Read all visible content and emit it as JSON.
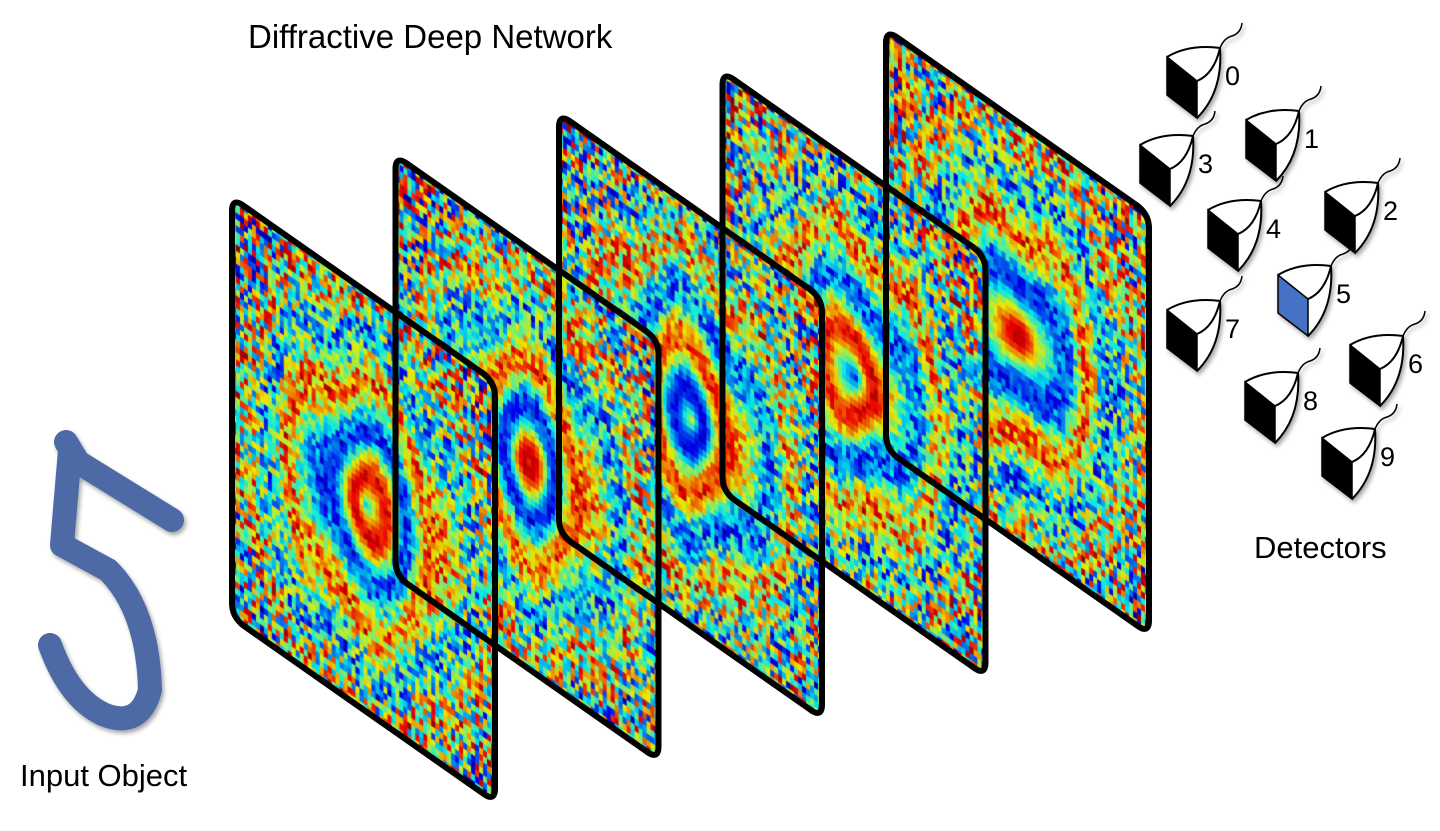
{
  "title": "Diffractive Deep Network",
  "input_label": "Input Object",
  "detectors_label": "Detectors",
  "input_digit": "5",
  "layer_count": 5,
  "colormap": "jet",
  "colors": {
    "digit": "#4d6aa6",
    "active_detector": "#4472c4",
    "frame": "#000000"
  },
  "detectors": [
    {
      "label": "0",
      "active": false
    },
    {
      "label": "1",
      "active": false
    },
    {
      "label": "2",
      "active": false
    },
    {
      "label": "3",
      "active": false
    },
    {
      "label": "4",
      "active": false
    },
    {
      "label": "5",
      "active": true
    },
    {
      "label": "6",
      "active": false
    },
    {
      "label": "7",
      "active": false
    },
    {
      "label": "8",
      "active": false
    },
    {
      "label": "9",
      "active": false
    }
  ]
}
